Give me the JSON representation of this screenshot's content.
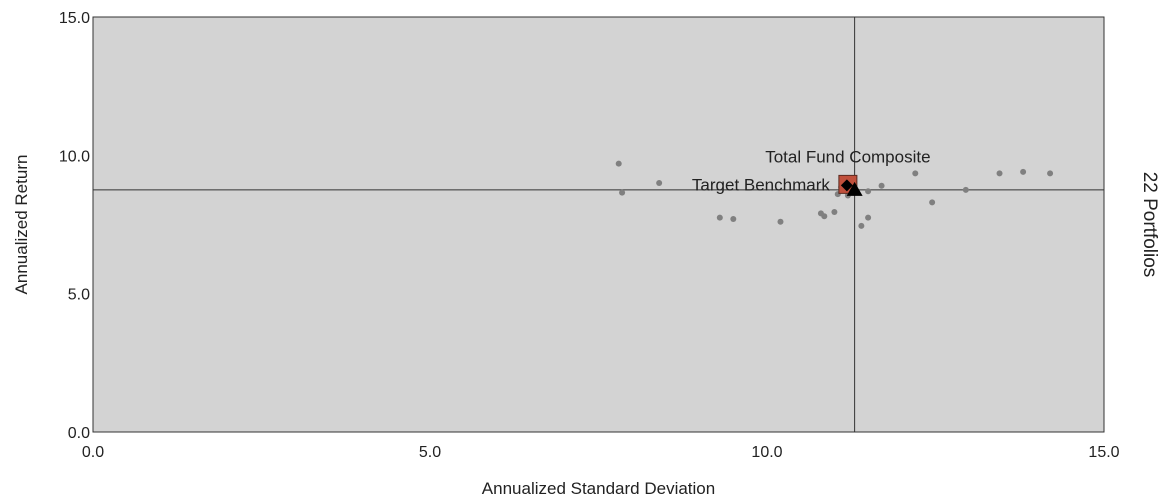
{
  "chart_data": {
    "type": "scatter",
    "xlabel": "Annualized Standard Deviation",
    "ylabel": "Annualized Return",
    "right_label": "22 Portfolios",
    "xlim": [
      0,
      15
    ],
    "ylim": [
      0,
      15
    ],
    "x_ticks": [
      "0.0",
      "5.0",
      "10.0",
      "15.0"
    ],
    "y_ticks": [
      "0.0",
      "5.0",
      "10.0",
      "15.0"
    ],
    "grid": false,
    "reference_lines": {
      "x": 11.3,
      "y": 8.75
    },
    "colors": {
      "plot_background": "#d3d3d3",
      "portfolio_points": "#808080",
      "composite_marker": "#c0503c",
      "benchmark_marker": "#000000",
      "reference_line": "#333333"
    },
    "series": [
      {
        "name": "",
        "marker": "circle",
        "points": [
          {
            "x": 7.8,
            "y": 9.7
          },
          {
            "x": 7.85,
            "y": 8.65
          },
          {
            "x": 8.4,
            "y": 9.0
          },
          {
            "x": 9.3,
            "y": 7.75
          },
          {
            "x": 9.5,
            "y": 7.7
          },
          {
            "x": 10.2,
            "y": 7.6
          },
          {
            "x": 10.8,
            "y": 7.9
          },
          {
            "x": 10.85,
            "y": 7.8
          },
          {
            "x": 11.0,
            "y": 7.95
          },
          {
            "x": 11.4,
            "y": 7.45
          },
          {
            "x": 11.5,
            "y": 7.75
          },
          {
            "x": 11.5,
            "y": 8.7
          },
          {
            "x": 11.7,
            "y": 8.9
          },
          {
            "x": 12.2,
            "y": 9.35
          },
          {
            "x": 12.45,
            "y": 8.3
          },
          {
            "x": 12.95,
            "y": 8.75
          },
          {
            "x": 13.45,
            "y": 9.35
          },
          {
            "x": 13.8,
            "y": 9.4
          },
          {
            "x": 14.2,
            "y": 9.35
          },
          {
            "x": 11.1,
            "y": 8.85
          },
          {
            "x": 11.05,
            "y": 8.6
          },
          {
            "x": 11.2,
            "y": 8.55
          }
        ]
      },
      {
        "name": "Total Fund Composite",
        "marker": "square",
        "points": [
          {
            "x": 11.2,
            "y": 8.95
          }
        ]
      },
      {
        "name": "Target Benchmark",
        "marker": "triangle",
        "points": [
          {
            "x": 11.3,
            "y": 8.75
          }
        ]
      }
    ]
  }
}
